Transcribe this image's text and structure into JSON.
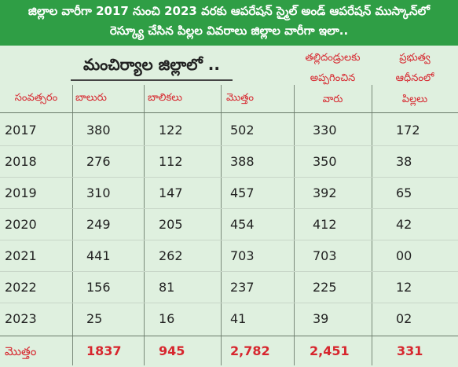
{
  "title_line1": "జిల్లాల వారీగా 2017 నుంచి 2023 వరకు ఆపరేషన్ స్మైల్ అండ్ ఆపరేషన్ ముస్కాన్‌లో",
  "title_line2": "రెస్క్యూ చేసిన పిల్లల వివరాలు జిల్లాల వారీగా ఇలా..",
  "district_label": "మంచిర్యాల జిల్లాలో ..",
  "headers": {
    "year": "సంవత్సరం",
    "boys": "బాలురు",
    "girls": "బాలికలు",
    "total": "మొత్తం",
    "parents_line1": "తల్లిదండ్రులకు",
    "parents_line2": "అప్పగించిన",
    "parents_line3": "వారు",
    "govt_line1": "ప్రభుత్వ",
    "govt_line2": "ఆధీనంలో",
    "govt_line3": "పిల్లలు"
  },
  "rows": [
    {
      "year": "2017",
      "boys": "380",
      "girls": "122",
      "total": "502",
      "parents": "330",
      "govt": "172"
    },
    {
      "year": "2018",
      "boys": "276",
      "girls": "112",
      "total": "388",
      "parents": "350",
      "govt": "38"
    },
    {
      "year": "2019",
      "boys": "310",
      "girls": "147",
      "total": "457",
      "parents": "392",
      "govt": "65"
    },
    {
      "year": "2020",
      "boys": "249",
      "girls": "205",
      "total": "454",
      "parents": "412",
      "govt": "42"
    },
    {
      "year": "2021",
      "boys": "441",
      "girls": "262",
      "total": "703",
      "parents": "703",
      "govt": "00"
    },
    {
      "year": "2022",
      "boys": "156",
      "girls": "81",
      "total": "237",
      "parents": "225",
      "govt": "12"
    },
    {
      "year": "2023",
      "boys": "25",
      "girls": "16",
      "total": "41",
      "parents": "39",
      "govt": "02"
    }
  ],
  "totals": {
    "label": "మొత్తం",
    "boys": "1837",
    "girls": "945",
    "total": "2,782",
    "parents": "2,451",
    "govt": "331"
  }
}
